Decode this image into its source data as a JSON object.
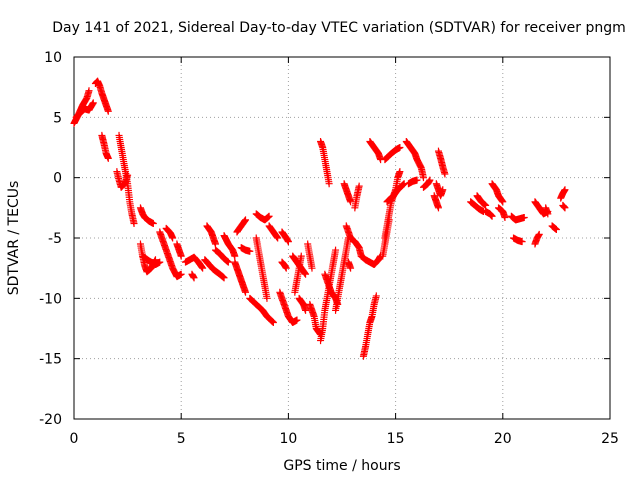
{
  "chart_data": {
    "type": "scatter",
    "title": "Day 141 of 2021, Sidereal Day-to-day VTEC variation (SDTVAR) for receiver pngm",
    "xlabel": "GPS time / hours",
    "ylabel": "SDTVAR / TECUs",
    "xlim": [
      0,
      25
    ],
    "ylim": [
      -20,
      10
    ],
    "xticks": [
      "0",
      "5",
      "10",
      "15",
      "20",
      "25"
    ],
    "yticks": [
      "-20",
      "-15",
      "-10",
      "-5",
      "0",
      "5",
      "10"
    ],
    "grid": true,
    "marker": "+",
    "series_color": "#ff0000",
    "segments": [
      [
        [
          0.0,
          4.5
        ],
        [
          0.2,
          5.2
        ],
        [
          0.4,
          6.0
        ],
        [
          0.6,
          6.6
        ],
        [
          0.7,
          7.2
        ]
      ],
      [
        [
          0.1,
          5.0
        ],
        [
          0.3,
          5.4
        ],
        [
          0.5,
          5.7
        ],
        [
          0.7,
          5.6
        ],
        [
          0.9,
          6.2
        ]
      ],
      [
        [
          1.0,
          7.8
        ],
        [
          1.1,
          8.0
        ],
        [
          1.2,
          7.6
        ],
        [
          1.3,
          7.0
        ],
        [
          1.4,
          6.5
        ],
        [
          1.5,
          6.0
        ],
        [
          1.6,
          5.5
        ]
      ],
      [
        [
          1.3,
          3.5
        ],
        [
          1.4,
          2.8
        ],
        [
          1.5,
          2.0
        ],
        [
          1.6,
          1.6
        ]
      ],
      [
        [
          2.1,
          3.5
        ],
        [
          2.2,
          2.5
        ],
        [
          2.3,
          1.5
        ],
        [
          2.4,
          0.5
        ],
        [
          2.5,
          -0.5
        ],
        [
          2.6,
          -2.0
        ],
        [
          2.7,
          -3.0
        ],
        [
          2.8,
          -3.8
        ]
      ],
      [
        [
          2.0,
          0.5
        ],
        [
          2.1,
          -0.2
        ],
        [
          2.2,
          -0.8
        ],
        [
          2.4,
          -0.4
        ],
        [
          2.5,
          0.2
        ]
      ],
      [
        [
          3.1,
          -2.5
        ],
        [
          3.2,
          -3.0
        ],
        [
          3.3,
          -3.3
        ],
        [
          3.5,
          -3.6
        ],
        [
          3.7,
          -3.8
        ]
      ],
      [
        [
          3.1,
          -5.5
        ],
        [
          3.2,
          -6.5
        ],
        [
          3.3,
          -7.3
        ],
        [
          3.4,
          -7.8
        ],
        [
          3.6,
          -7.5
        ],
        [
          3.8,
          -6.8
        ]
      ],
      [
        [
          3.2,
          -6.5
        ],
        [
          3.5,
          -6.9
        ],
        [
          3.8,
          -7.2
        ],
        [
          4.0,
          -7.0
        ]
      ],
      [
        [
          4.0,
          -4.5
        ],
        [
          4.2,
          -5.5
        ],
        [
          4.4,
          -6.5
        ],
        [
          4.6,
          -7.5
        ],
        [
          4.8,
          -8.2
        ],
        [
          5.0,
          -8.0
        ]
      ],
      [
        [
          4.3,
          -4.2
        ],
        [
          4.5,
          -4.6
        ],
        [
          4.6,
          -5.0
        ]
      ],
      [
        [
          4.8,
          -5.5
        ],
        [
          4.9,
          -6.0
        ],
        [
          5.0,
          -6.5
        ]
      ],
      [
        [
          5.2,
          -7.0
        ],
        [
          5.4,
          -6.8
        ],
        [
          5.6,
          -6.6
        ],
        [
          5.8,
          -7.0
        ],
        [
          6.0,
          -7.5
        ]
      ],
      [
        [
          5.5,
          -8.0
        ],
        [
          5.6,
          -8.3
        ]
      ],
      [
        [
          6.1,
          -6.8
        ],
        [
          6.3,
          -7.2
        ],
        [
          6.5,
          -7.6
        ],
        [
          6.8,
          -8.0
        ],
        [
          7.0,
          -8.3
        ]
      ],
      [
        [
          6.2,
          -4.0
        ],
        [
          6.4,
          -4.5
        ],
        [
          6.5,
          -5.0
        ],
        [
          6.6,
          -5.5
        ]
      ],
      [
        [
          6.6,
          -6.0
        ],
        [
          6.8,
          -6.3
        ],
        [
          7.0,
          -6.7
        ],
        [
          7.2,
          -7.0
        ]
      ],
      [
        [
          7.0,
          -4.8
        ],
        [
          7.2,
          -5.5
        ],
        [
          7.4,
          -6.0
        ],
        [
          7.5,
          -6.5
        ]
      ],
      [
        [
          7.5,
          -7.0
        ],
        [
          7.6,
          -7.5
        ],
        [
          7.7,
          -8.0
        ],
        [
          7.8,
          -8.5
        ],
        [
          7.9,
          -9.0
        ],
        [
          8.0,
          -9.5
        ]
      ],
      [
        [
          7.6,
          -4.5
        ],
        [
          7.8,
          -4.0
        ],
        [
          8.0,
          -3.5
        ]
      ],
      [
        [
          7.8,
          -5.8
        ],
        [
          8.0,
          -6.0
        ],
        [
          8.2,
          -6.1
        ]
      ],
      [
        [
          8.5,
          -3.0
        ],
        [
          8.7,
          -3.3
        ],
        [
          8.9,
          -3.5
        ],
        [
          9.1,
          -3.2
        ]
      ],
      [
        [
          8.5,
          -5.0
        ],
        [
          8.6,
          -6.0
        ],
        [
          8.7,
          -7.0
        ],
        [
          8.8,
          -8.0
        ],
        [
          8.9,
          -9.0
        ],
        [
          9.0,
          -10.0
        ]
      ],
      [
        [
          8.2,
          -10.0
        ],
        [
          8.5,
          -10.5
        ],
        [
          8.8,
          -11.0
        ],
        [
          9.0,
          -11.5
        ],
        [
          9.3,
          -12.0
        ]
      ],
      [
        [
          9.1,
          -4.0
        ],
        [
          9.3,
          -4.5
        ],
        [
          9.5,
          -5.0
        ]
      ],
      [
        [
          9.7,
          -4.5
        ],
        [
          9.9,
          -5.0
        ],
        [
          10.0,
          -5.3
        ]
      ],
      [
        [
          9.6,
          -9.5
        ],
        [
          9.8,
          -10.5
        ],
        [
          10.0,
          -11.5
        ],
        [
          10.2,
          -12.0
        ],
        [
          10.4,
          -11.8
        ]
      ],
      [
        [
          9.7,
          -7.0
        ],
        [
          9.8,
          -7.2
        ],
        [
          9.9,
          -7.5
        ]
      ],
      [
        [
          10.2,
          -6.5
        ],
        [
          10.4,
          -7.0
        ],
        [
          10.6,
          -7.5
        ],
        [
          10.8,
          -8.0
        ]
      ],
      [
        [
          10.3,
          -9.5
        ],
        [
          10.4,
          -8.5
        ],
        [
          10.5,
          -7.5
        ],
        [
          10.6,
          -6.5
        ]
      ],
      [
        [
          10.5,
          -10.0
        ],
        [
          10.7,
          -10.5
        ],
        [
          10.8,
          -11.0
        ]
      ],
      [
        [
          10.9,
          -5.5
        ],
        [
          11.0,
          -6.5
        ],
        [
          11.1,
          -7.5
        ]
      ],
      [
        [
          11.0,
          -10.5
        ],
        [
          11.2,
          -11.5
        ],
        [
          11.3,
          -12.5
        ],
        [
          11.5,
          -13.0
        ]
      ],
      [
        [
          11.5,
          3.0
        ],
        [
          11.6,
          2.5
        ],
        [
          11.7,
          1.5
        ],
        [
          11.8,
          0.5
        ],
        [
          11.9,
          -0.5
        ]
      ],
      [
        [
          11.5,
          -13.5
        ],
        [
          11.6,
          -12.5
        ],
        [
          11.7,
          -11.0
        ],
        [
          11.8,
          -10.0
        ],
        [
          11.9,
          -9.0
        ],
        [
          12.0,
          -8.0
        ],
        [
          12.1,
          -7.0
        ],
        [
          12.2,
          -6.0
        ]
      ],
      [
        [
          11.7,
          -8.0
        ],
        [
          11.9,
          -9.0
        ],
        [
          12.0,
          -9.5
        ],
        [
          12.2,
          -10.0
        ],
        [
          12.3,
          -10.5
        ]
      ],
      [
        [
          12.2,
          -11.0
        ],
        [
          12.3,
          -10.0
        ],
        [
          12.4,
          -9.0
        ],
        [
          12.5,
          -8.0
        ],
        [
          12.6,
          -7.0
        ],
        [
          12.7,
          -6.0
        ],
        [
          12.8,
          -5.0
        ]
      ],
      [
        [
          12.6,
          -0.5
        ],
        [
          12.7,
          -1.0
        ],
        [
          12.8,
          -1.5
        ],
        [
          12.9,
          -2.0
        ]
      ],
      [
        [
          12.7,
          -4.0
        ],
        [
          12.9,
          -5.0
        ],
        [
          13.1,
          -5.3
        ],
        [
          13.3,
          -5.8
        ],
        [
          13.4,
          -6.5
        ]
      ],
      [
        [
          12.8,
          -7.0
        ],
        [
          12.9,
          -7.5
        ]
      ],
      [
        [
          13.1,
          -2.5
        ],
        [
          13.2,
          -1.5
        ],
        [
          13.3,
          -0.7
        ]
      ],
      [
        [
          13.5,
          -14.8
        ],
        [
          13.6,
          -14.0
        ],
        [
          13.7,
          -13.0
        ],
        [
          13.8,
          -12.0
        ],
        [
          13.9,
          -11.5
        ],
        [
          14.0,
          -10.5
        ],
        [
          14.1,
          -9.8
        ]
      ],
      [
        [
          13.4,
          -6.5
        ],
        [
          13.6,
          -6.8
        ],
        [
          13.8,
          -7.0
        ],
        [
          14.0,
          -7.2
        ],
        [
          14.2,
          -6.8
        ],
        [
          14.3,
          -6.5
        ]
      ],
      [
        [
          13.8,
          3.0
        ],
        [
          14.0,
          2.5
        ],
        [
          14.2,
          2.0
        ],
        [
          14.3,
          1.5
        ]
      ],
      [
        [
          14.5,
          -5.0
        ],
        [
          14.6,
          -4.0
        ],
        [
          14.7,
          -3.0
        ],
        [
          14.8,
          -2.0
        ],
        [
          15.0,
          -1.0
        ],
        [
          15.1,
          0.0
        ],
        [
          15.2,
          0.5
        ]
      ],
      [
        [
          14.4,
          -6.5
        ],
        [
          14.5,
          -5.5
        ],
        [
          14.6,
          -4.5
        ],
        [
          14.7,
          -3.5
        ]
      ],
      [
        [
          14.5,
          1.5
        ],
        [
          14.8,
          2.0
        ],
        [
          15.0,
          2.3
        ],
        [
          15.2,
          2.5
        ]
      ],
      [
        [
          14.6,
          -2.0
        ],
        [
          14.9,
          -1.5
        ],
        [
          15.1,
          -1.0
        ],
        [
          15.4,
          -0.5
        ]
      ],
      [
        [
          15.5,
          3.0
        ],
        [
          15.7,
          2.5
        ],
        [
          15.9,
          2.0
        ],
        [
          16.0,
          1.5
        ],
        [
          16.2,
          0.8
        ],
        [
          16.3,
          0.0
        ]
      ],
      [
        [
          15.6,
          -0.5
        ],
        [
          15.8,
          -0.3
        ],
        [
          16.0,
          -0.2
        ]
      ],
      [
        [
          16.3,
          -0.8
        ],
        [
          16.5,
          -0.5
        ],
        [
          16.6,
          -0.2
        ]
      ],
      [
        [
          17.0,
          2.2
        ],
        [
          17.1,
          1.6
        ],
        [
          17.2,
          0.9
        ],
        [
          17.3,
          0.3
        ]
      ],
      [
        [
          16.9,
          -0.5
        ],
        [
          17.0,
          -1.0
        ],
        [
          17.1,
          -1.5
        ],
        [
          17.2,
          -1.0
        ]
      ],
      [
        [
          16.8,
          -1.5
        ],
        [
          16.9,
          -2.0
        ],
        [
          17.0,
          -2.5
        ]
      ],
      [
        [
          18.5,
          -2.0
        ],
        [
          18.7,
          -2.3
        ],
        [
          18.9,
          -2.6
        ],
        [
          19.1,
          -2.8
        ]
      ],
      [
        [
          18.8,
          -1.5
        ],
        [
          19.0,
          -2.0
        ],
        [
          19.2,
          -2.3
        ]
      ],
      [
        [
          19.5,
          -0.5
        ],
        [
          19.7,
          -1.0
        ],
        [
          19.8,
          -1.5
        ],
        [
          20.0,
          -2.0
        ]
      ],
      [
        [
          19.8,
          -2.5
        ],
        [
          20.0,
          -2.8
        ],
        [
          20.1,
          -3.3
        ]
      ],
      [
        [
          19.2,
          -2.8
        ],
        [
          19.4,
          -3.0
        ],
        [
          19.5,
          -3.2
        ]
      ],
      [
        [
          20.4,
          -3.2
        ],
        [
          20.6,
          -3.5
        ],
        [
          20.8,
          -3.4
        ],
        [
          21.0,
          -3.3
        ]
      ],
      [
        [
          20.5,
          -5.0
        ],
        [
          20.7,
          -5.2
        ],
        [
          20.9,
          -5.3
        ]
      ],
      [
        [
          21.5,
          -2.0
        ],
        [
          21.7,
          -2.5
        ],
        [
          21.9,
          -3.0
        ],
        [
          22.1,
          -2.8
        ]
      ],
      [
        [
          21.5,
          -5.5
        ],
        [
          21.6,
          -5.0
        ],
        [
          21.7,
          -4.7
        ]
      ],
      [
        [
          22.0,
          -2.5
        ],
        [
          22.1,
          -3.0
        ]
      ],
      [
        [
          22.3,
          -4.0
        ],
        [
          22.5,
          -4.3
        ]
      ],
      [
        [
          22.7,
          -1.7
        ],
        [
          22.8,
          -1.3
        ],
        [
          22.9,
          -1.0
        ]
      ],
      [
        [
          22.8,
          -2.3
        ],
        [
          22.9,
          -2.5
        ]
      ]
    ]
  }
}
